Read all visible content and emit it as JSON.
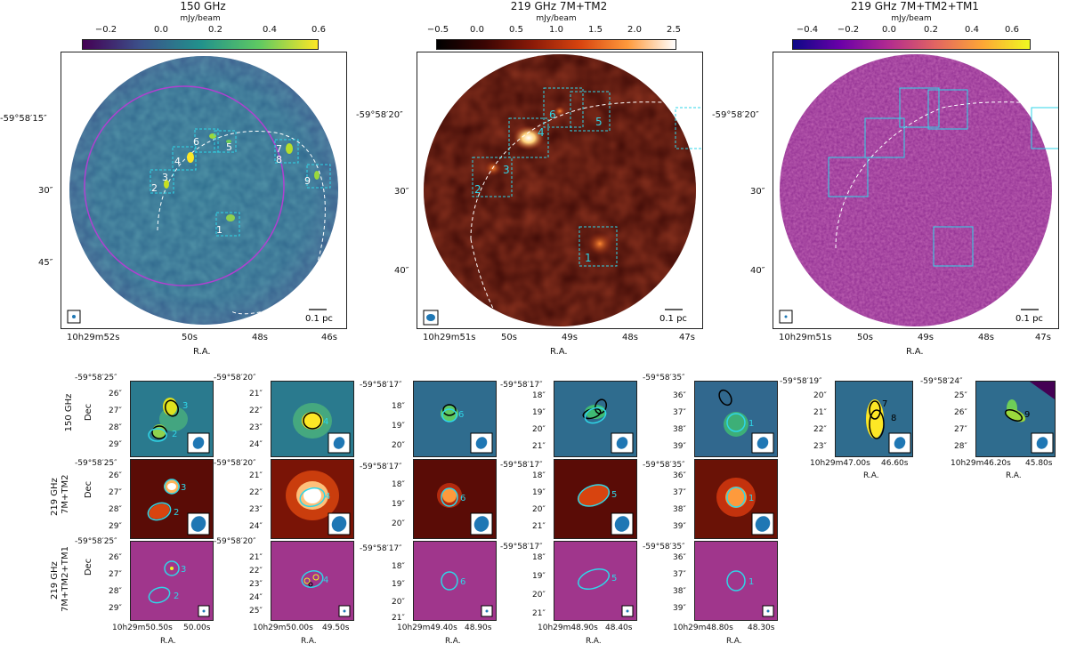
{
  "top_panels": [
    {
      "id": "p150",
      "title": "150 GHz",
      "cbar_unit": "mJy/beam",
      "cbar_ticks": [
        "−0.2",
        "0.0",
        "0.2",
        "0.4",
        "0.6"
      ],
      "dec_ticks": [
        "-59°58′15″",
        "30″",
        "45″"
      ],
      "ra_ticks": [
        "10h29m52s",
        "50s",
        "48s",
        "46s"
      ],
      "xlabel": "R.A.",
      "scalebar": "0.1 pc",
      "box_labels": [
        "1",
        "2",
        "3",
        "4",
        "5",
        "6",
        "7",
        "8",
        "9"
      ],
      "colors": {
        "bg": "#2f6c8e",
        "low": "#440154",
        "mid": "#21918c",
        "high": "#fde725"
      }
    },
    {
      "id": "p219a",
      "title": "219 GHz 7M+TM2",
      "cbar_unit": "mJy/beam",
      "cbar_ticks": [
        "−0.5",
        "0.0",
        "0.5",
        "1.0",
        "1.5",
        "2.0",
        "2.5"
      ],
      "dec_ticks": [
        "-59°58′20″",
        "30″",
        "40″"
      ],
      "ra_ticks": [
        "10h29m51s",
        "50s",
        "49s",
        "48s",
        "47s"
      ],
      "xlabel": "R.A.",
      "scalebar": "0.1 pc",
      "box_labels": [
        "1",
        "2",
        "3",
        "4",
        "5",
        "6"
      ],
      "colors": {
        "bg": "#4a0a05",
        "low": "#000000",
        "mid": "#b22a0e",
        "high": "#ffffff"
      }
    },
    {
      "id": "p219b",
      "title": "219 GHz 7M+TM2+TM1",
      "cbar_unit": "mJy/beam",
      "cbar_ticks": [
        "−0.4",
        "−0.2",
        "0.0",
        "0.2",
        "0.4",
        "0.6"
      ],
      "dec_ticks": [
        "-59°58′20″",
        "30″",
        "40″"
      ],
      "ra_ticks": [
        "10h29m51s",
        "50s",
        "49s",
        "48s",
        "47s"
      ],
      "xlabel": "R.A.",
      "scalebar": "0.1 pc",
      "box_labels": [],
      "colors": {
        "bg": "#9c2f8e",
        "low": "#0d0887",
        "mid": "#cc4778",
        "high": "#f0f921"
      }
    }
  ],
  "row_labels": [
    "150 GHz",
    "219 GHz\n7M+TM2",
    "219 GHz\n7M+TM2+TM1"
  ],
  "dec_axis_label": "Dec",
  "ra_axis_label": "R.A.",
  "cutout_columns": [
    {
      "id": "c1",
      "source_labels": [
        "3",
        "2"
      ],
      "first_tick": "-59°58′25″",
      "dec_ticks": [
        "26″",
        "27″",
        "28″",
        "29″"
      ],
      "ra_ticks": [
        "10h29m50.50s",
        "50.00s"
      ]
    },
    {
      "id": "c2",
      "source_labels": [
        "4"
      ],
      "first_tick": "-59°58′20″",
      "dec_ticks": [
        "21″",
        "22″",
        "23″",
        "24″"
      ],
      "dec_ticks_bottom": [
        "21″",
        "22″",
        "23″",
        "24″",
        "25″"
      ],
      "ra_ticks": [
        "10h29m50.00s",
        "49.50s"
      ]
    },
    {
      "id": "c3",
      "source_labels": [
        "6"
      ],
      "first_tick": "-59°58′17″",
      "dec_ticks": [
        "18″",
        "19″",
        "20″"
      ],
      "dec_ticks_bottom": [
        "18″",
        "19″",
        "20″",
        "21″"
      ],
      "ra_ticks": [
        "10h29m49.40s",
        "48.90s"
      ]
    },
    {
      "id": "c4",
      "source_labels": [
        "5"
      ],
      "first_tick": "-59°58′17″",
      "dec_ticks": [
        "18″",
        "19″",
        "20″",
        "21″"
      ],
      "ra_ticks": [
        "10h29m48.90s",
        "48.40s"
      ]
    },
    {
      "id": "c5",
      "source_labels": [
        "1"
      ],
      "first_tick": "-59°58′35″",
      "dec_ticks": [
        "36″",
        "37″",
        "38″",
        "39″"
      ],
      "ra_ticks": [
        "10h29m48.80s",
        "48.30s"
      ]
    }
  ],
  "extra_cutouts": [
    {
      "id": "e1",
      "source_labels": [
        "7",
        "8"
      ],
      "first_tick": "-59°58′19″",
      "dec_ticks": [
        "20″",
        "21″",
        "22″",
        "23″"
      ],
      "ra_ticks": [
        "10h29m47.00s",
        "46.60s"
      ]
    },
    {
      "id": "e2",
      "source_labels": [
        "9"
      ],
      "first_tick": "-59°58′24″",
      "dec_ticks": [
        "25″",
        "26″",
        "27″",
        "28″"
      ],
      "ra_ticks": [
        "10h29m46.20s",
        "45.80s"
      ]
    }
  ]
}
